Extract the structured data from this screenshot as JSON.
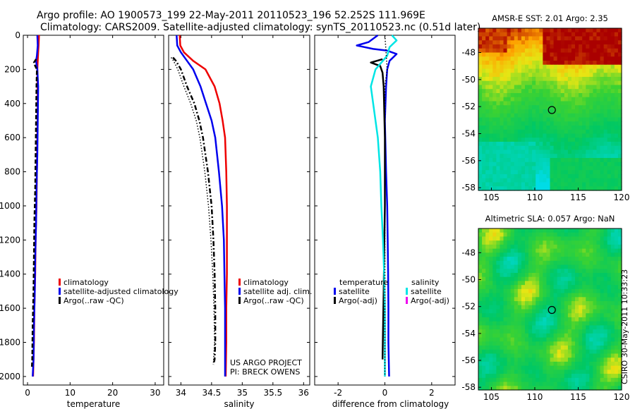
{
  "header": {
    "line1": "Argo profile: AO 1900573_199 22-May-2011 20110523_196 52.252S 111.969E",
    "line2": "Climatology: CARS2009. Satellite-adjusted climatology: synTS_20110523.nc (0.51d later)"
  },
  "credit": {
    "project": "US ARGO PROJECT",
    "pi": "PI: BRECK OWENS",
    "stamp": "CSIRO 30-May-2011 10:33:23"
  },
  "colors": {
    "climatology": "#ee0000",
    "satellite": "#0000ee",
    "argo": "#000000",
    "salinity_satellite": "#00e5e5",
    "salinity_argo": "#ee00ee"
  },
  "chart_data": [
    {
      "type": "line",
      "id": "temperature",
      "xlabel": "temperature",
      "xlim": [
        -1,
        32
      ],
      "xticks": [
        0,
        10,
        20,
        30
      ],
      "ylim": [
        2050,
        0
      ],
      "yticks": [
        0,
        200,
        400,
        600,
        800,
        1000,
        1200,
        1400,
        1600,
        1800,
        2000
      ],
      "legend": [
        "climatology",
        "satellite-adjusted climatology",
        "Argo(..raw -QC)"
      ],
      "series": [
        {
          "name": "climatology",
          "style": "solid",
          "points": [
            [
              2.7,
              0
            ],
            [
              2.6,
              60
            ],
            [
              2.5,
              100
            ],
            [
              2.3,
              200
            ],
            [
              2.4,
              400
            ],
            [
              2.3,
              600
            ],
            [
              2.2,
              800
            ],
            [
              2.1,
              1000
            ],
            [
              1.9,
              1200
            ],
            [
              1.8,
              1400
            ],
            [
              1.6,
              1600
            ],
            [
              1.5,
              1800
            ],
            [
              1.3,
              2000
            ]
          ]
        },
        {
          "name": "satellite-adjusted climatology",
          "style": "solid",
          "points": [
            [
              2.3,
              0
            ],
            [
              2.4,
              60
            ],
            [
              2.2,
              120
            ],
            [
              2.0,
              150
            ],
            [
              2.3,
              200
            ],
            [
              2.5,
              300
            ],
            [
              2.4,
              500
            ],
            [
              2.3,
              700
            ],
            [
              2.1,
              900
            ],
            [
              2.0,
              1100
            ],
            [
              1.8,
              1300
            ],
            [
              1.7,
              1500
            ],
            [
              1.5,
              1700
            ],
            [
              1.4,
              1900
            ],
            [
              1.2,
              2000
            ]
          ]
        },
        {
          "name": "Argo(..raw -QC)",
          "style": "dashed",
          "points": [
            [
              2.0,
              140
            ],
            [
              1.5,
              160
            ],
            [
              1.8,
              180
            ],
            [
              2.2,
              200
            ],
            [
              2.1,
              300
            ],
            [
              2.0,
              500
            ],
            [
              1.9,
              700
            ],
            [
              1.8,
              900
            ],
            [
              1.6,
              1100
            ],
            [
              1.5,
              1300
            ],
            [
              1.4,
              1500
            ],
            [
              1.2,
              1700
            ],
            [
              1.1,
              1900
            ],
            [
              1.0,
              1950
            ]
          ]
        }
      ]
    },
    {
      "type": "line",
      "id": "salinity",
      "xlabel": "salinity",
      "xlim": [
        33.8,
        36.1
      ],
      "xticks": [
        34,
        34.5,
        35,
        35.5,
        36
      ],
      "ylim": [
        2050,
        0
      ],
      "legend": [
        "climatology",
        "satellite adj. clim.",
        "Argo(..raw -QC)"
      ],
      "series": [
        {
          "name": "climatology",
          "style": "solid",
          "points": [
            [
              33.98,
              0
            ],
            [
              33.99,
              60
            ],
            [
              34.05,
              100
            ],
            [
              34.2,
              150
            ],
            [
              34.4,
              200
            ],
            [
              34.55,
              300
            ],
            [
              34.63,
              400
            ],
            [
              34.68,
              500
            ],
            [
              34.72,
              600
            ],
            [
              34.74,
              800
            ],
            [
              34.75,
              1000
            ],
            [
              34.75,
              1200
            ],
            [
              34.75,
              1400
            ],
            [
              34.74,
              1600
            ],
            [
              34.74,
              1800
            ],
            [
              34.73,
              2000
            ]
          ]
        },
        {
          "name": "satellite adj. clim.",
          "style": "solid",
          "points": [
            [
              33.93,
              0
            ],
            [
              33.94,
              60
            ],
            [
              34.0,
              100
            ],
            [
              34.1,
              150
            ],
            [
              34.2,
              200
            ],
            [
              34.32,
              300
            ],
            [
              34.41,
              400
            ],
            [
              34.5,
              500
            ],
            [
              34.56,
              600
            ],
            [
              34.62,
              800
            ],
            [
              34.67,
              1000
            ],
            [
              34.7,
              1200
            ],
            [
              34.71,
              1400
            ],
            [
              34.72,
              1600
            ],
            [
              34.72,
              1800
            ],
            [
              34.72,
              2000
            ]
          ]
        },
        {
          "name": "Argo(..raw -QC)",
          "style": "dashdot",
          "points": [
            [
              33.87,
              130
            ],
            [
              33.92,
              150
            ],
            [
              34.0,
              200
            ],
            [
              34.1,
              300
            ],
            [
              34.22,
              400
            ],
            [
              34.3,
              500
            ],
            [
              34.36,
              600
            ],
            [
              34.44,
              800
            ],
            [
              34.5,
              1000
            ],
            [
              34.53,
              1200
            ],
            [
              34.55,
              1400
            ],
            [
              34.56,
              1600
            ],
            [
              34.56,
              1800
            ],
            [
              34.55,
              1900
            ],
            [
              34.53,
              1930
            ]
          ]
        },
        {
          "name": "Argo(-adj)",
          "style": "dotted",
          "points": [
            [
              33.84,
              130
            ],
            [
              33.88,
              150
            ],
            [
              33.95,
              200
            ],
            [
              34.05,
              300
            ],
            [
              34.16,
              400
            ],
            [
              34.25,
              500
            ],
            [
              34.31,
              600
            ],
            [
              34.39,
              800
            ],
            [
              34.45,
              1000
            ],
            [
              34.49,
              1200
            ],
            [
              34.52,
              1400
            ],
            [
              34.54,
              1600
            ],
            [
              34.55,
              1800
            ],
            [
              34.53,
              1920
            ]
          ]
        }
      ]
    },
    {
      "type": "line",
      "id": "difference",
      "xlabel": "difference from climatology",
      "xlim": [
        -3.0,
        3.0
      ],
      "xticks": [
        -2,
        0,
        2
      ],
      "ylim": [
        2050,
        0
      ],
      "legend_temperature": {
        "title": "temperature",
        "items": [
          "satellite",
          "Argo(-adj)"
        ]
      },
      "legend_salinity": {
        "title": "salinity",
        "items": [
          "satellite",
          "Argo(-adj)"
        ]
      },
      "series": [
        {
          "name": "temperature satellite",
          "style": "solid",
          "color_key": "satellite",
          "points": [
            [
              -0.3,
              0
            ],
            [
              -0.7,
              40
            ],
            [
              -1.2,
              60
            ],
            [
              -0.5,
              80
            ],
            [
              0.1,
              90
            ],
            [
              0.5,
              110
            ],
            [
              0.2,
              150
            ],
            [
              0.1,
              200
            ],
            [
              0.05,
              300
            ],
            [
              0,
              500
            ],
            [
              0.05,
              800
            ],
            [
              0.1,
              1000
            ],
            [
              0.12,
              1200
            ],
            [
              0.14,
              1400
            ],
            [
              0.15,
              1600
            ],
            [
              0.15,
              1800
            ],
            [
              0.18,
              2000
            ]
          ]
        },
        {
          "name": "temperature Argo(-adj)",
          "style": "solid",
          "color_key": "argo",
          "points": [
            [
              -0.1,
              140
            ],
            [
              -0.6,
              160
            ],
            [
              -0.2,
              180
            ],
            [
              -0.1,
              220
            ],
            [
              -0.05,
              300
            ],
            [
              0,
              600
            ],
            [
              0,
              1000
            ],
            [
              -0.05,
              1500
            ],
            [
              -0.1,
              1900
            ]
          ]
        },
        {
          "name": "salinity satellite",
          "style": "solid",
          "color_key": "salinity_satellite",
          "points": [
            [
              0.3,
              0
            ],
            [
              0.5,
              30
            ],
            [
              0.2,
              70
            ],
            [
              0.1,
              120
            ],
            [
              -0.4,
              200
            ],
            [
              -0.6,
              300
            ],
            [
              -0.5,
              400
            ],
            [
              -0.4,
              500
            ],
            [
              -0.3,
              600
            ],
            [
              -0.2,
              800
            ],
            [
              -0.15,
              1000
            ],
            [
              -0.08,
              1200
            ],
            [
              -0.03,
              1400
            ],
            [
              0,
              1600
            ],
            [
              0,
              1800
            ],
            [
              0,
              2000
            ]
          ]
        },
        {
          "name": "salinity reference",
          "style": "dotted",
          "color_key": "argo",
          "points": [
            [
              0,
              0
            ],
            [
              0.05,
              100
            ],
            [
              0.1,
              200
            ],
            [
              0,
              300
            ],
            [
              0,
              2000
            ]
          ]
        }
      ]
    },
    {
      "type": "heatmap",
      "id": "sst-map",
      "title": "AMSR-E SST: 2.01 Argo: 2.35",
      "xlim": [
        103.5,
        120
      ],
      "ylim": [
        -58.2,
        -46.2
      ],
      "xticks": [
        105,
        110,
        115,
        120
      ],
      "yticks": [
        -48,
        -50,
        -52,
        -54,
        -56,
        -58
      ],
      "marker": {
        "lon": 111.969,
        "lat": -52.252
      }
    },
    {
      "type": "heatmap",
      "id": "sla-map",
      "title": "Altimetric SLA: 0.057 Argo: NaN",
      "xlim": [
        103.5,
        120
      ],
      "ylim": [
        -58.2,
        -46.2
      ],
      "xticks": [
        105,
        110,
        115,
        120
      ],
      "yticks": [
        -48,
        -50,
        -52,
        -54,
        -56,
        -58
      ],
      "marker": {
        "lon": 111.969,
        "lat": -52.252
      }
    }
  ]
}
